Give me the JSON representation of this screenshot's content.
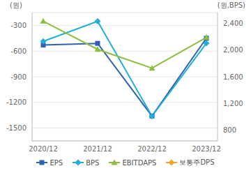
{
  "chart_data": {
    "type": "line",
    "categories": [
      "2020/12",
      "2021/12",
      "2022/12",
      "2023/12"
    ],
    "y_label": "(원)",
    "y2_label": "(원,BPS)",
    "ylim": [
      -1650,
      -150
    ],
    "yticks": [
      -1500,
      -1200,
      -900,
      -600,
      -300
    ],
    "y2lim": [
      640,
      2560
    ],
    "y2ticks": [
      800,
      {
        "value": 1200,
        "label": "1,200"
      },
      {
        "value": 1600,
        "label": "1,600"
      },
      {
        "value": 2000,
        "label": "2,000"
      },
      {
        "value": 2400,
        "label": "2,400"
      }
    ],
    "grid": true,
    "legend": "bottom",
    "series": [
      {
        "name": "EPS",
        "color": "#2f62b0",
        "marker": "square",
        "values": [
          -530,
          -510,
          -1360,
          -450
        ]
      },
      {
        "name": "BPS",
        "color": "#1fb0d8",
        "marker": "diamond",
        "axis": "y2",
        "values": [
          2130,
          2430,
          1010,
          2100
        ]
      },
      {
        "name": "EBITDAPS",
        "color": "#8cbf40",
        "marker": "triangle",
        "values": [
          -250,
          -580,
          -800,
          -440
        ]
      },
      {
        "name": "보통주DPS",
        "color": "#f2a42a",
        "marker": "diamond",
        "values": [
          null,
          null,
          null,
          null
        ]
      }
    ]
  }
}
